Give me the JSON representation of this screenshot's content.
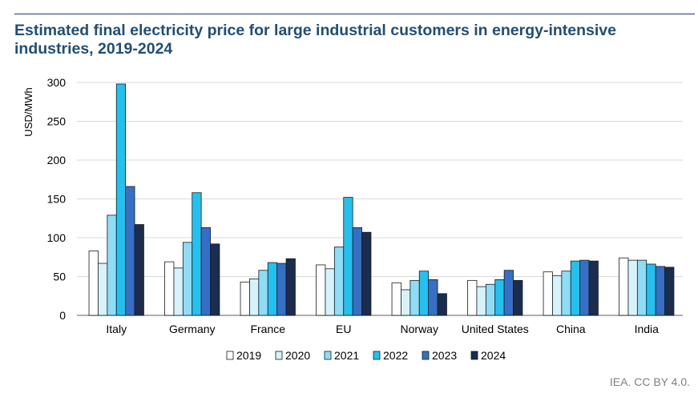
{
  "title": "Estimated final electricity price for large industrial customers in energy-intensive industries, 2019-2024",
  "source": "IEA. CC BY 4.0.",
  "chart_data": {
    "type": "bar",
    "title": "Estimated final electricity price for large industrial customers in energy-intensive industries, 2019-2024",
    "xlabel": "",
    "ylabel": "USD/MWh",
    "ylim": [
      0,
      300
    ],
    "yticks": [
      0,
      50,
      100,
      150,
      200,
      250,
      300
    ],
    "grid": true,
    "legend": "bottom",
    "categories": [
      "Italy",
      "Germany",
      "France",
      "EU",
      "Norway",
      "United States",
      "China",
      "India"
    ],
    "series": [
      {
        "name": "2019",
        "color": "#ffffff",
        "values": [
          83,
          69,
          43,
          65,
          42,
          45,
          56,
          74
        ]
      },
      {
        "name": "2020",
        "color": "#d6f3fb",
        "values": [
          67,
          61,
          47,
          60,
          33,
          37,
          51,
          71
        ]
      },
      {
        "name": "2021",
        "color": "#8fdcf6",
        "values": [
          129,
          94,
          58,
          88,
          45,
          40,
          57,
          71
        ]
      },
      {
        "name": "2022",
        "color": "#23c1f0",
        "values": [
          298,
          158,
          68,
          152,
          57,
          46,
          70,
          66
        ]
      },
      {
        "name": "2023",
        "color": "#3570c6",
        "values": [
          166,
          113,
          67,
          113,
          46,
          58,
          71,
          63
        ]
      },
      {
        "name": "2024",
        "color": "#1b2d4f",
        "values": [
          117,
          92,
          73,
          107,
          28,
          45,
          70,
          62
        ]
      }
    ]
  }
}
